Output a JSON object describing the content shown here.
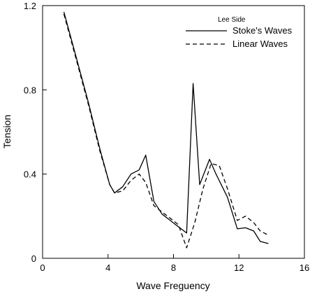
{
  "chart_data": {
    "type": "line",
    "xlabel": "Wave Freguency",
    "ylabel": "Tension",
    "xlim": [
      0,
      16
    ],
    "ylim": [
      0,
      1.2
    ],
    "x_ticks": [
      0,
      4,
      8,
      12,
      16
    ],
    "y_ticks": [
      0,
      0.4,
      0.8,
      1.2
    ],
    "x_tick_labels": [
      "0",
      "4",
      "8",
      "12",
      "16"
    ],
    "y_tick_labels": [
      "0",
      "0.4",
      "0.8",
      "1.2"
    ],
    "grid": false,
    "legend": {
      "title": "Lee Side",
      "placement": "top-right"
    },
    "series": [
      {
        "name": "Stoke's Waves",
        "style": "solid",
        "color": "#000000",
        "x": [
          1.3,
          2.0,
          2.8,
          3.5,
          4.1,
          4.4,
          4.9,
          5.4,
          5.9,
          6.3,
          6.8,
          7.3,
          7.8,
          8.3,
          8.8,
          9.2,
          9.6,
          10.2,
          10.6,
          11.3,
          11.9,
          12.4,
          12.9,
          13.3,
          13.8
        ],
        "y": [
          1.17,
          0.97,
          0.74,
          0.52,
          0.35,
          0.31,
          0.34,
          0.4,
          0.42,
          0.49,
          0.27,
          0.21,
          0.18,
          0.15,
          0.12,
          0.83,
          0.35,
          0.47,
          0.4,
          0.29,
          0.14,
          0.145,
          0.13,
          0.08,
          0.07
        ]
      },
      {
        "name": "Linear Waves",
        "style": "dashed",
        "color": "#000000",
        "x": [
          1.3,
          2.0,
          2.8,
          3.5,
          4.1,
          4.4,
          4.9,
          5.4,
          5.9,
          6.3,
          6.8,
          7.3,
          7.8,
          8.3,
          8.8,
          9.3,
          9.8,
          10.3,
          10.8,
          11.3,
          11.9,
          12.4,
          12.9,
          13.3,
          13.8
        ],
        "y": [
          1.16,
          0.96,
          0.73,
          0.51,
          0.35,
          0.31,
          0.32,
          0.37,
          0.4,
          0.36,
          0.25,
          0.22,
          0.19,
          0.16,
          0.05,
          0.17,
          0.33,
          0.45,
          0.44,
          0.33,
          0.18,
          0.2,
          0.17,
          0.13,
          0.11
        ]
      }
    ]
  }
}
